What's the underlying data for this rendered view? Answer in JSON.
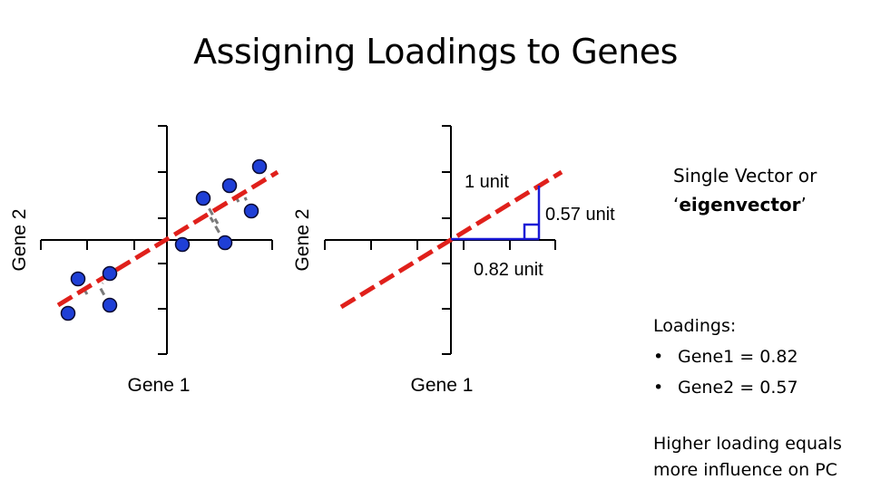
{
  "title": "Assigning Loadings to Genes",
  "left_plot": {
    "xlabel": "Gene 1",
    "ylabel": "Gene 2"
  },
  "right_plot": {
    "xlabel": "Gene 1",
    "ylabel": "Gene 2",
    "hyp_label": "1 unit",
    "vert_label": "0.57 unit",
    "horiz_label": "0.82 unit"
  },
  "eigen_text": {
    "line1": "Single Vector or",
    "quote_open": "‘",
    "bold": "eigenvector",
    "quote_close": "’"
  },
  "loadings": {
    "heading": "Loadings:",
    "bullet": "•",
    "items": [
      "Gene1 = 0.82",
      "Gene2 = 0.57"
    ]
  },
  "footer_note": {
    "line1": "Higher loading equals",
    "line2": "more influence on PC"
  },
  "colors": {
    "pc_line": "#e0201b",
    "point_fill": "#1f3fd6",
    "point_stroke": "#0a0a30",
    "projection": "#7a7a7a",
    "triangle": "#1a1ad6",
    "axis": "#000000"
  }
}
